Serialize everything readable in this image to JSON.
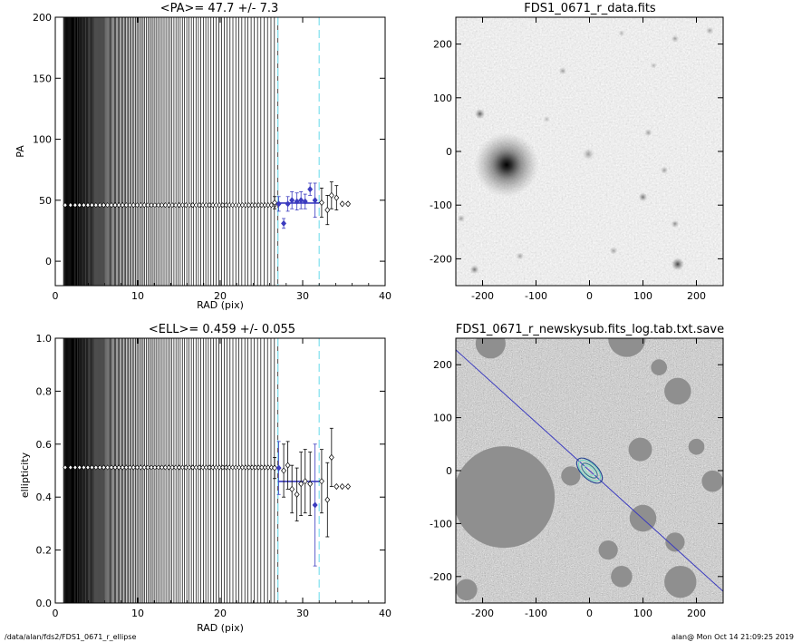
{
  "footer": {
    "left": "/data/alan/fds2/FDS1_0671_r_ellipse",
    "right": "alan@  Mon Oct 14 21:09:25 2019"
  },
  "colors": {
    "fit_line": "#3b3bbf",
    "dashed_line": "#7fe0ef",
    "axis": "#000000"
  },
  "chart_data": [
    {
      "id": "pa_profile",
      "type": "scatter",
      "title": "<PA>=  47.7 +/-   7.3",
      "xlabel": "RAD (pix)",
      "ylabel": "PA",
      "xlim": [
        0,
        40
      ],
      "ylim": [
        -20,
        200
      ],
      "xticks": [
        0,
        10,
        20,
        30,
        40
      ],
      "yticks": [
        0,
        50,
        100,
        150,
        200
      ],
      "dense_points_y": 46,
      "dense_points_x_range": [
        1,
        27
      ],
      "vertical_dashed_lines": [
        27,
        32
      ],
      "mean_line": {
        "x_range": [
          27,
          32
        ],
        "y": 47.7
      },
      "points": [
        {
          "x": 26.6,
          "y": 48,
          "err": 5,
          "highlight": false
        },
        {
          "x": 27.1,
          "y": 47,
          "err": 6,
          "highlight": true
        },
        {
          "x": 27.7,
          "y": 31,
          "err": 4,
          "highlight": true
        },
        {
          "x": 28.2,
          "y": 47,
          "err": 6,
          "highlight": true
        },
        {
          "x": 28.7,
          "y": 50,
          "err": 7,
          "highlight": true
        },
        {
          "x": 29.3,
          "y": 49,
          "err": 7,
          "highlight": true
        },
        {
          "x": 29.8,
          "y": 50,
          "err": 7,
          "highlight": true
        },
        {
          "x": 30.3,
          "y": 49,
          "err": 6,
          "highlight": true
        },
        {
          "x": 30.9,
          "y": 59,
          "err": 5,
          "highlight": true
        },
        {
          "x": 31.5,
          "y": 50,
          "err": 14,
          "highlight": true
        },
        {
          "x": 32.3,
          "y": 48,
          "err": 12,
          "highlight": false
        },
        {
          "x": 33.0,
          "y": 42,
          "err": 12,
          "highlight": false
        },
        {
          "x": 33.5,
          "y": 54,
          "err": 11,
          "highlight": false
        },
        {
          "x": 34.1,
          "y": 52,
          "err": 10,
          "highlight": false
        },
        {
          "x": 34.8,
          "y": 47,
          "err": 0,
          "highlight": false
        },
        {
          "x": 35.5,
          "y": 47,
          "err": 0,
          "highlight": false
        }
      ]
    },
    {
      "id": "ell_profile",
      "type": "scatter",
      "title": "<ELL>= 0.459 +/-  0.055",
      "xlabel": "RAD (pix)",
      "ylabel": "ellipticity",
      "xlim": [
        0,
        40
      ],
      "ylim": [
        0.0,
        1.0
      ],
      "xticks": [
        0,
        10,
        20,
        30,
        40
      ],
      "yticks": [
        "0.0",
        "0.2",
        "0.4",
        "0.6",
        "0.8",
        "1.0"
      ],
      "dense_points_y": 0.512,
      "dense_points_x_range": [
        1,
        27
      ],
      "vertical_dashed_lines": [
        27,
        32
      ],
      "mean_line": {
        "x_range": [
          27,
          32
        ],
        "y": 0.459
      },
      "points": [
        {
          "x": 26.6,
          "y": 0.51,
          "err": 0.04,
          "highlight": false
        },
        {
          "x": 27.1,
          "y": 0.51,
          "err": 0.1,
          "highlight": true
        },
        {
          "x": 27.7,
          "y": 0.5,
          "err": 0.1,
          "highlight": false
        },
        {
          "x": 28.2,
          "y": 0.52,
          "err": 0.09,
          "highlight": false
        },
        {
          "x": 28.7,
          "y": 0.43,
          "err": 0.09,
          "highlight": false
        },
        {
          "x": 29.3,
          "y": 0.41,
          "err": 0.1,
          "highlight": false
        },
        {
          "x": 29.8,
          "y": 0.45,
          "err": 0.12,
          "highlight": false
        },
        {
          "x": 30.3,
          "y": 0.46,
          "err": 0.12,
          "highlight": false
        },
        {
          "x": 30.9,
          "y": 0.45,
          "err": 0.12,
          "highlight": false
        },
        {
          "x": 31.5,
          "y": 0.37,
          "err": 0.23,
          "highlight": true
        },
        {
          "x": 32.3,
          "y": 0.46,
          "err": 0.12,
          "highlight": false
        },
        {
          "x": 33.0,
          "y": 0.39,
          "err": 0.14,
          "highlight": false
        },
        {
          "x": 33.5,
          "y": 0.55,
          "err": 0.11,
          "highlight": false
        },
        {
          "x": 34.1,
          "y": 0.44,
          "err": 0.0,
          "highlight": false
        },
        {
          "x": 34.8,
          "y": 0.44,
          "err": 0.0,
          "highlight": false
        },
        {
          "x": 35.5,
          "y": 0.44,
          "err": 0.0,
          "highlight": false
        }
      ]
    },
    {
      "id": "data_image",
      "type": "heatmap",
      "title": "FDS1_0671_r_data.fits",
      "xlim": [
        -250,
        250
      ],
      "ylim": [
        -250,
        250
      ],
      "xticks": [
        -200,
        -100,
        0,
        100,
        200
      ],
      "yticks": [
        -200,
        -100,
        0,
        100,
        200
      ],
      "colormap": "inverted grayscale",
      "sources": [
        {
          "x": -155,
          "y": -25,
          "size": 60,
          "strength": 1.0
        },
        {
          "x": -205,
          "y": 70,
          "size": 8,
          "strength": 0.35
        },
        {
          "x": 165,
          "y": -210,
          "size": 10,
          "strength": 0.45
        },
        {
          "x": 100,
          "y": -85,
          "size": 7,
          "strength": 0.3
        },
        {
          "x": -2,
          "y": -5,
          "size": 9,
          "strength": 0.2
        },
        {
          "x": -215,
          "y": -220,
          "size": 7,
          "strength": 0.3
        },
        {
          "x": 160,
          "y": -135,
          "size": 6,
          "strength": 0.25
        },
        {
          "x": 140,
          "y": -35,
          "size": 6,
          "strength": 0.2
        },
        {
          "x": 110,
          "y": 35,
          "size": 6,
          "strength": 0.2
        },
        {
          "x": 160,
          "y": 210,
          "size": 6,
          "strength": 0.2
        },
        {
          "x": -50,
          "y": 150,
          "size": 6,
          "strength": 0.2
        },
        {
          "x": 45,
          "y": -185,
          "size": 6,
          "strength": 0.2
        },
        {
          "x": -130,
          "y": -195,
          "size": 6,
          "strength": 0.2
        },
        {
          "x": 225,
          "y": 225,
          "size": 6,
          "strength": 0.2
        },
        {
          "x": -240,
          "y": -125,
          "size": 6,
          "strength": 0.2
        },
        {
          "x": 120,
          "y": 160,
          "size": 5,
          "strength": 0.15
        },
        {
          "x": -80,
          "y": 60,
          "size": 5,
          "strength": 0.15
        },
        {
          "x": 60,
          "y": 220,
          "size": 5,
          "strength": 0.15
        }
      ]
    },
    {
      "id": "model_image",
      "type": "heatmap",
      "title": "FDS1_0671_r_newskysub.fits_log.tab.txt.save",
      "xlim": [
        -250,
        250
      ],
      "ylim": [
        -250,
        250
      ],
      "xticks": [
        -200,
        -100,
        0,
        100,
        200
      ],
      "yticks": [
        -200,
        -100,
        0,
        100,
        200
      ],
      "colormap": "grayscale noise",
      "masked_regions": [
        {
          "x": -160,
          "y": -50,
          "r": 95
        },
        {
          "x": -185,
          "y": 240,
          "r": 28
        },
        {
          "x": 70,
          "y": 250,
          "r": 35
        },
        {
          "x": 165,
          "y": 150,
          "r": 25
        },
        {
          "x": 95,
          "y": 40,
          "r": 22
        },
        {
          "x": 100,
          "y": -90,
          "r": 25
        },
        {
          "x": 170,
          "y": -210,
          "r": 30
        },
        {
          "x": 160,
          "y": -135,
          "r": 18
        },
        {
          "x": -230,
          "y": -225,
          "r": 20
        },
        {
          "x": 230,
          "y": -20,
          "r": 20
        },
        {
          "x": 60,
          "y": -200,
          "r": 20
        },
        {
          "x": 35,
          "y": -150,
          "r": 18
        },
        {
          "x": -35,
          "y": -10,
          "r": 18
        },
        {
          "x": 130,
          "y": 195,
          "r": 15
        },
        {
          "x": 200,
          "y": 45,
          "r": 15
        }
      ],
      "fit_line": {
        "from": [
          -250,
          228
        ],
        "to": [
          250,
          -228
        ]
      },
      "ellipses": [
        {
          "a": 12,
          "b": 6,
          "pa_deg": -42
        },
        {
          "a": 18,
          "b": 9,
          "pa_deg": -42
        },
        {
          "a": 25,
          "b": 13,
          "pa_deg": -42
        },
        {
          "a": 30,
          "b": 15,
          "pa_deg": -44
        }
      ]
    }
  ]
}
